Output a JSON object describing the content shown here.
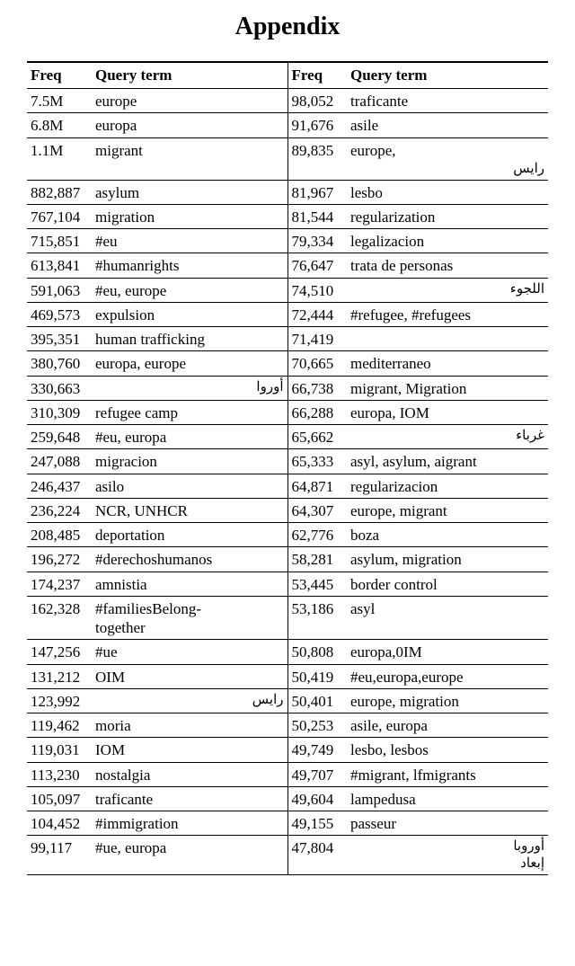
{
  "title": "Appendix",
  "headers": {
    "freq": "Freq",
    "term": "Query term"
  },
  "rows": [
    {
      "lf": "7.5M",
      "lt": "europe",
      "rf": "98,052",
      "rt": "traficante"
    },
    {
      "lf": "6.8M",
      "lt": "europa",
      "rf": "91,676",
      "rt": "asile"
    },
    {
      "lf": "1.1M",
      "lt": "migrant",
      "rf": "89,835",
      "rt": "europe,",
      "rt_sub_rtl": "رايس"
    },
    {
      "lf": "882,887",
      "lt": "asylum",
      "rf": "81,967",
      "rt": "lesbo"
    },
    {
      "lf": "767,104",
      "lt": "migration",
      "rf": "81,544",
      "rt": "regularization"
    },
    {
      "lf": "715,851",
      "lt": "#eu",
      "rf": "79,334",
      "rt": "legalizacion"
    },
    {
      "lf": "613,841",
      "lt": "#humanrights",
      "rf": "76,647",
      "rt": "trata de personas"
    },
    {
      "lf": "591,063",
      "lt": "#eu, europe",
      "rf": "74,510",
      "rt_sub_rtl": "اللجوء"
    },
    {
      "lf": "469,573",
      "lt": "expulsion",
      "rf": "72,444",
      "rt": "#refugee, #refugees"
    },
    {
      "lf": "395,351",
      "lt": "human trafficking",
      "rf": "71,419",
      "rt": ""
    },
    {
      "lf": "380,760",
      "lt": "europa, europe",
      "rf": "70,665",
      "rt": "mediterraneo"
    },
    {
      "lf": "330,663",
      "lt_sub_rtl": "أوروا",
      "rf": "66,738",
      "rt": "migrant, Migration"
    },
    {
      "lf": "310,309",
      "lt": "refugee camp",
      "rf": "66,288",
      "rt": "europa, IOM"
    },
    {
      "lf": "259,648",
      "lt": "#eu, europa",
      "rf": "65,662",
      "rt_sub_rtl": "غرباء"
    },
    {
      "lf": "247,088",
      "lt": "migracion",
      "rf": "65,333",
      "rt": "asyl, asylum, aigrant"
    },
    {
      "lf": "246,437",
      "lt": "asilo",
      "rf": "64,871",
      "rt": "regularizacion"
    },
    {
      "lf": "236,224",
      "lt": "NCR, UNHCR",
      "rf": "64,307",
      "rt": "europe, migrant"
    },
    {
      "lf": "208,485",
      "lt": "deportation",
      "rf": "62,776",
      "rt": "boza"
    },
    {
      "lf": "196,272",
      "lt": "#derechoshumanos",
      "rf": "58,281",
      "rt": "asylum, migration"
    },
    {
      "lf": "174,237",
      "lt": "amnistia",
      "rf": "53,445",
      "rt": "border control"
    },
    {
      "lf": "162,328",
      "lt": "#familiesBelong-\ntogether",
      "rf": "53,186",
      "rt": "asyl"
    },
    {
      "lf": "147,256",
      "lt": "#ue",
      "rf": "50,808",
      "rt": "europa,0IM"
    },
    {
      "lf": "131,212",
      "lt": "OIM",
      "rf": "50,419",
      "rt": "#eu,europa,europe"
    },
    {
      "lf": "123,992",
      "lt_sub_rtl": "رايس",
      "rf": "50,401",
      "rt": "europe, migration"
    },
    {
      "lf": "119,462",
      "lt": "moria",
      "rf": "50,253",
      "rt": "asile, europa"
    },
    {
      "lf": "119,031",
      "lt": "IOM",
      "rf": "49,749",
      "rt": "lesbo, lesbos"
    },
    {
      "lf": "113,230",
      "lt": "nostalgia",
      "rf": "49,707",
      "rt": "#migrant, lfmigrants"
    },
    {
      "lf": "105,097",
      "lt": "traficante",
      "rf": "49,604",
      "rt": "lampedusa"
    },
    {
      "lf": "104,452",
      "lt": "#immigration",
      "rf": "49,155",
      "rt": "passeur"
    },
    {
      "lf": "99,117",
      "lt": "#ue, europa",
      "rf": "47,804",
      "rt_sub_rtl": "أوروبا\nإبعاد"
    }
  ]
}
